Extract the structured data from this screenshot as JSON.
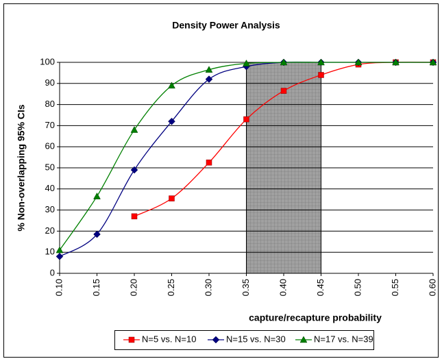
{
  "chart_data": {
    "type": "line",
    "title": "Density Power Analysis",
    "x_label": "capture/recapture probability",
    "y_label": "% Non-overlapping 95% CIs",
    "xlim": [
      0.1,
      0.6
    ],
    "ylim": [
      0,
      100
    ],
    "xticks": [
      {
        "value": 0.1,
        "label": "0.10"
      },
      0.15,
      {
        "value": 0.2,
        "label": "0.20"
      },
      0.25,
      {
        "value": 0.3,
        "label": "0.30"
      },
      0.35,
      {
        "value": 0.4,
        "label": "0.40"
      },
      0.45,
      {
        "value": 0.5,
        "label": "0.50"
      },
      0.55,
      {
        "value": 0.6,
        "label": "0.60"
      }
    ],
    "yticks": [
      0,
      10,
      20,
      30,
      40,
      50,
      60,
      70,
      80,
      90,
      100
    ],
    "grid": true,
    "highlight_xrange": [
      0.35,
      0.45
    ],
    "legend": "bottom",
    "series": [
      {
        "name": "N=5 vs. N=10",
        "color": "#ff0000",
        "marker": "square",
        "x": [
          0.2,
          0.25,
          0.3,
          0.35,
          0.4,
          0.45,
          0.5,
          0.55,
          0.6
        ],
        "values": [
          27,
          35.5,
          52.5,
          73,
          86.5,
          94,
          99,
          100,
          100
        ]
      },
      {
        "name": "N=15 vs. N=30",
        "color": "#000080",
        "marker": "diamond",
        "x": [
          0.1,
          0.15,
          0.2,
          0.25,
          0.3,
          0.35,
          0.4,
          0.45,
          0.5,
          0.55,
          0.6
        ],
        "values": [
          8,
          18.5,
          49,
          72,
          92,
          98,
          100,
          100,
          100,
          100,
          100
        ]
      },
      {
        "name": "N=17 vs. N=39",
        "color": "#008000",
        "marker": "triangle",
        "x": [
          0.1,
          0.15,
          0.2,
          0.25,
          0.3,
          0.35,
          0.4,
          0.45,
          0.5,
          0.55,
          0.6
        ],
        "values": [
          11,
          36.5,
          68,
          89,
          96.5,
          99.5,
          100,
          100,
          100,
          100,
          100
        ]
      }
    ]
  }
}
